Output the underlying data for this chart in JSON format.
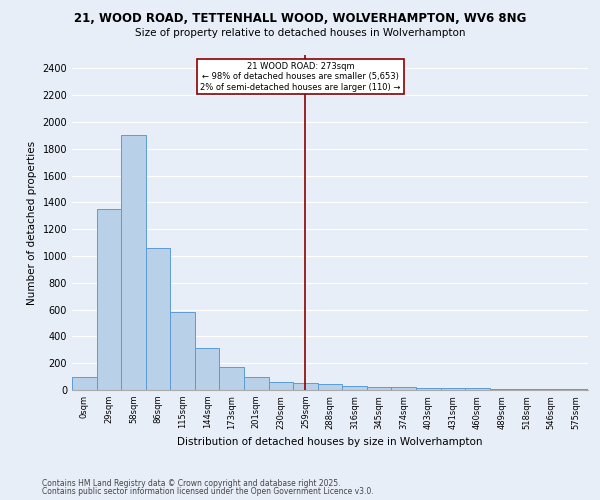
{
  "title_line1": "21, WOOD ROAD, TETTENHALL WOOD, WOLVERHAMPTON, WV6 8NG",
  "title_line2": "Size of property relative to detached houses in Wolverhampton",
  "xlabel": "Distribution of detached houses by size in Wolverhampton",
  "ylabel": "Number of detached properties",
  "categories": [
    "0sqm",
    "29sqm",
    "58sqm",
    "86sqm",
    "115sqm",
    "144sqm",
    "173sqm",
    "201sqm",
    "230sqm",
    "259sqm",
    "288sqm",
    "316sqm",
    "345sqm",
    "374sqm",
    "403sqm",
    "431sqm",
    "460sqm",
    "489sqm",
    "518sqm",
    "546sqm",
    "575sqm"
  ],
  "values": [
    100,
    1350,
    1900,
    1060,
    580,
    310,
    170,
    100,
    60,
    55,
    45,
    30,
    25,
    20,
    18,
    15,
    12,
    10,
    8,
    6,
    5
  ],
  "bar_color": "#b8d0e8",
  "bar_edge_color": "#5b9bd5",
  "vline_x": 9,
  "vline_color": "#8B0000",
  "annotation_text": "21 WOOD ROAD: 273sqm\n← 98% of detached houses are smaller (5,653)\n2% of semi-detached houses are larger (110) →",
  "annotation_box_color": "white",
  "annotation_box_edge_color": "#8B0000",
  "ylim": [
    0,
    2500
  ],
  "yticks": [
    0,
    200,
    400,
    600,
    800,
    1000,
    1200,
    1400,
    1600,
    1800,
    2000,
    2200,
    2400
  ],
  "background_color": "#e8eef8",
  "grid_color": "#ffffff",
  "footer_line1": "Contains HM Land Registry data © Crown copyright and database right 2025.",
  "footer_line2": "Contains public sector information licensed under the Open Government Licence v3.0."
}
